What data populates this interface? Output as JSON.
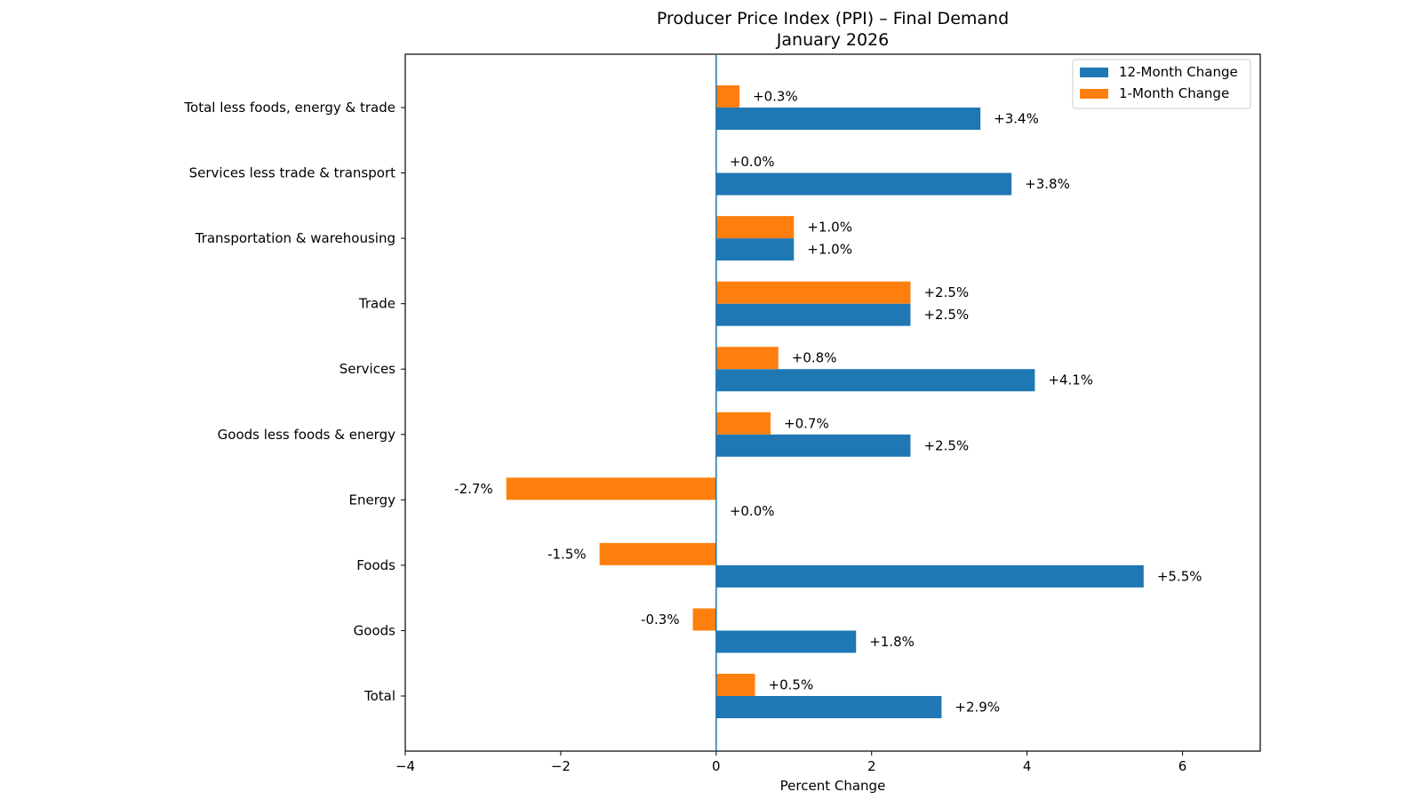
{
  "chart_data": {
    "type": "bar",
    "orientation": "horizontal",
    "title": "Producer Price Index (PPI) – Final Demand",
    "subtitle": "January 2026",
    "xlabel": "Percent Change",
    "ylabel": "",
    "xlim": [
      -4,
      7
    ],
    "xticks": [
      -4,
      -2,
      0,
      2,
      4,
      6
    ],
    "xtick_labels": [
      "−4",
      "−2",
      "0",
      "2",
      "4",
      "6"
    ],
    "grid": false,
    "legend_position": "top-right",
    "categories": [
      "Total",
      "Goods",
      "Foods",
      "Energy",
      "Goods less foods & energy",
      "Services",
      "Trade",
      "Transportation & warehousing",
      "Services less trade & transport",
      "Total less foods, energy & trade"
    ],
    "series": [
      {
        "name": "12-Month Change",
        "color": "#1f77b4",
        "values": [
          2.9,
          1.8,
          5.5,
          0.0,
          2.5,
          4.1,
          2.5,
          1.0,
          3.8,
          3.4
        ],
        "labels": [
          "+2.9%",
          "+1.8%",
          "+5.5%",
          "+0.0%",
          "+2.5%",
          "+4.1%",
          "+2.5%",
          "+1.0%",
          "+3.8%",
          "+3.4%"
        ]
      },
      {
        "name": "1-Month Change",
        "color": "#ff7f0e",
        "values": [
          0.5,
          -0.3,
          -1.5,
          -2.7,
          0.7,
          0.8,
          2.5,
          1.0,
          0.0,
          0.3
        ],
        "labels": [
          "+0.5%",
          "-0.3%",
          "-1.5%",
          "-2.7%",
          "+0.7%",
          "+0.8%",
          "+2.5%",
          "+1.0%",
          "+0.0%",
          "+0.3%"
        ]
      }
    ],
    "zero_line_color": "#1f77b4"
  }
}
